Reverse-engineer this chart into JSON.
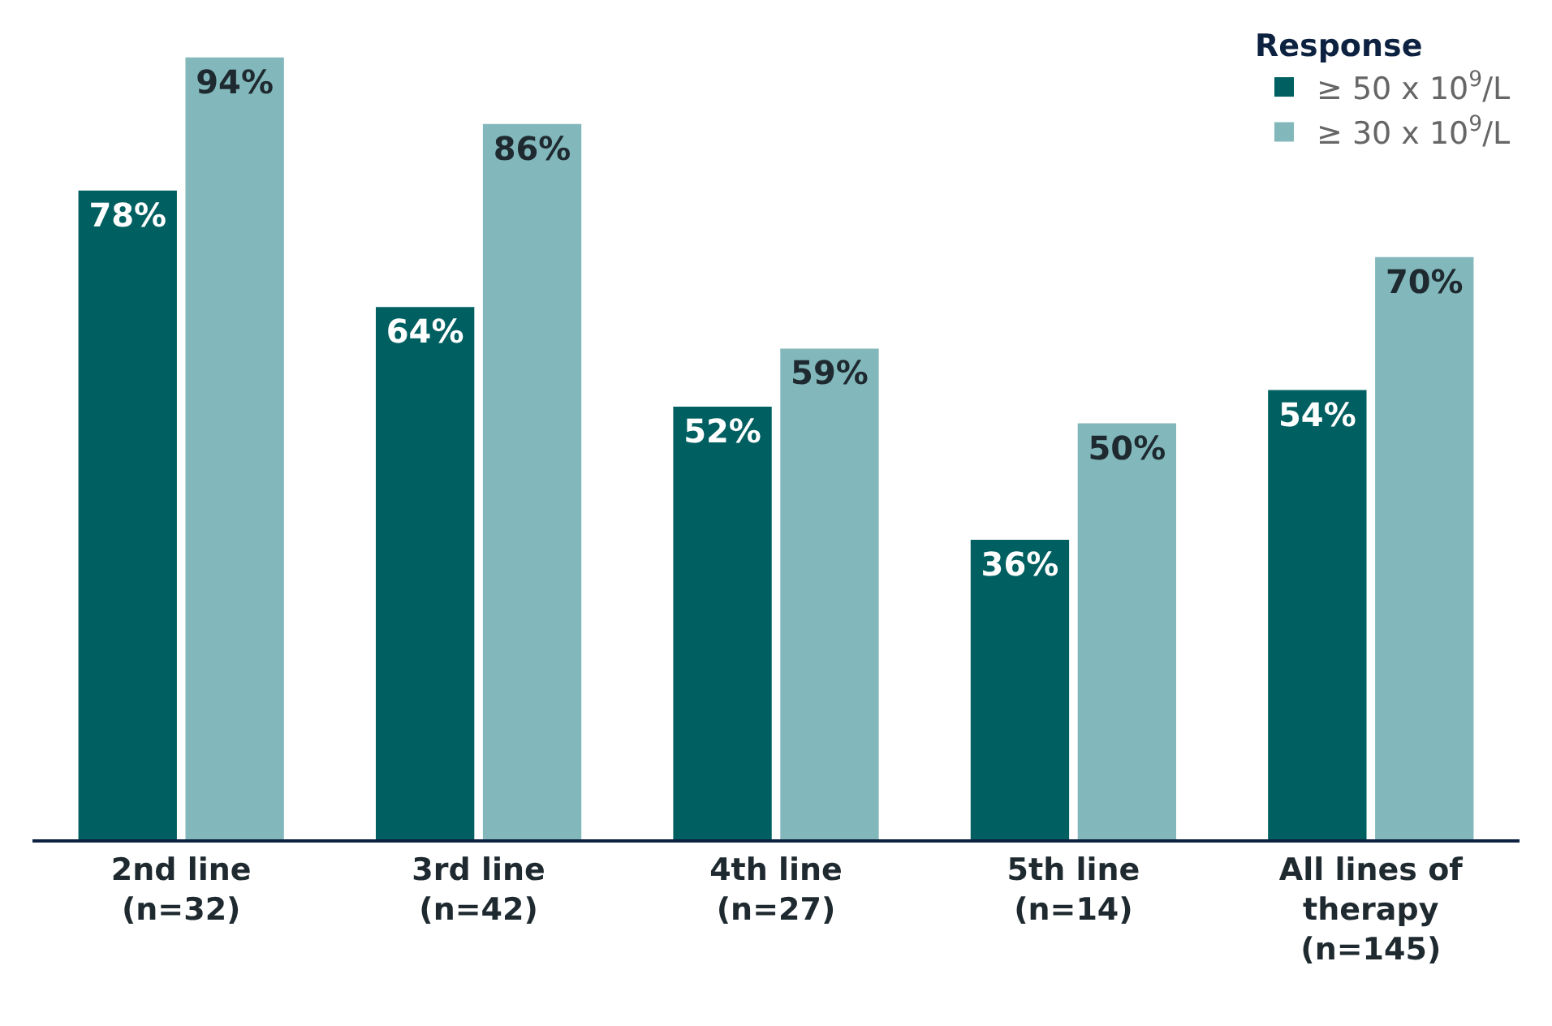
{
  "chart_data": {
    "type": "bar",
    "categories": [
      "2nd line\n(n=32)",
      "3rd line\n(n=42)",
      "4th line\n(n=27)",
      "5th line\n(n=14)",
      "All lines of\ntherapy\n(n=145)"
    ],
    "legend_title": "Response",
    "series": [
      {
        "name": "≥ 50 x 10$^{9}$/L",
        "color": "#005f60",
        "values": [
          78,
          64,
          52,
          36,
          54
        ],
        "value_labels": [
          "78%",
          "64%",
          "52%",
          "36%",
          "54%"
        ]
      },
      {
        "name": "≥ 30 x 10$^{9}$/L",
        "color": "#82b8bb",
        "values": [
          94,
          86,
          59,
          50,
          70
        ],
        "value_labels": [
          "94%",
          "86%",
          "59%",
          "50%",
          "70%"
        ]
      }
    ],
    "legend": "top right"
  }
}
